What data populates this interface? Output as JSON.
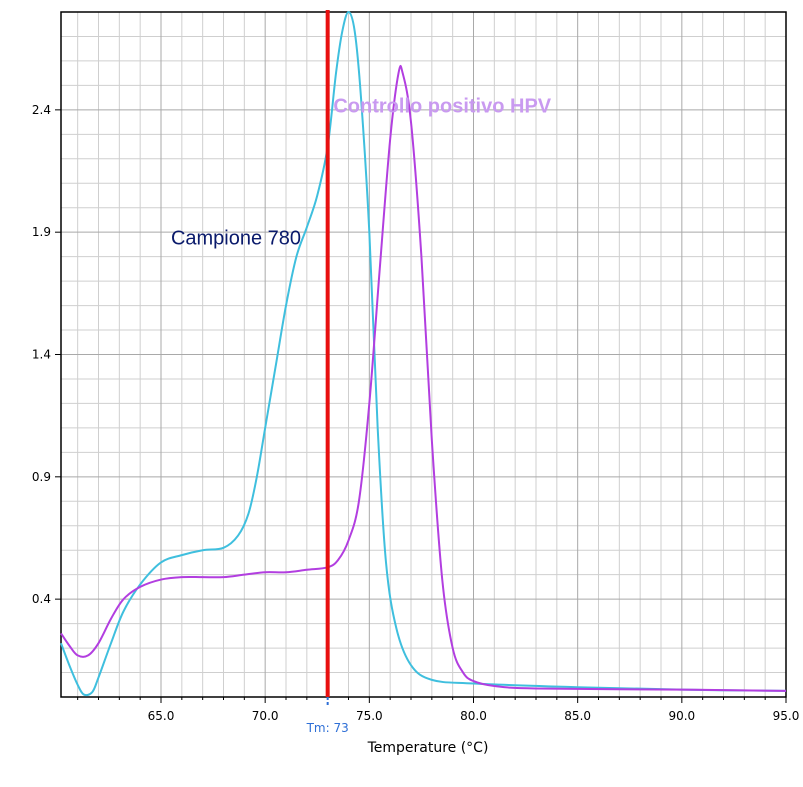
{
  "chart_data": {
    "type": "line",
    "xlabel": "Temperature (°C)",
    "ylabel": "",
    "xlim": [
      60.2,
      95.0
    ],
    "ylim": [
      0.0,
      2.8
    ],
    "x_ticks": [
      "65.0",
      "70.0",
      "75.0",
      "80.0",
      "85.0",
      "90.0",
      "95.0"
    ],
    "y_ticks": [
      "0.4",
      "0.9",
      "1.4",
      "1.9",
      "2.4"
    ],
    "x_tick_values": [
      65,
      70,
      75,
      80,
      85,
      90,
      95
    ],
    "y_tick_values": [
      0.4,
      0.9,
      1.4,
      1.9,
      2.4
    ],
    "grid": true,
    "colors": {
      "series1": "#3fbfde",
      "series2": "#b23ee0",
      "marker": "#e81010",
      "tm": "#2e6fd6"
    },
    "series": [
      {
        "name": "Campione 780",
        "points": [
          [
            60.2,
            0.22
          ],
          [
            60.6,
            0.13
          ],
          [
            61.0,
            0.05
          ],
          [
            61.3,
            0.01
          ],
          [
            61.7,
            0.02
          ],
          [
            62.0,
            0.08
          ],
          [
            62.6,
            0.22
          ],
          [
            63.2,
            0.35
          ],
          [
            64.0,
            0.46
          ],
          [
            65.0,
            0.55
          ],
          [
            66.0,
            0.58
          ],
          [
            67.0,
            0.6
          ],
          [
            68.0,
            0.61
          ],
          [
            68.7,
            0.66
          ],
          [
            69.2,
            0.75
          ],
          [
            69.6,
            0.9
          ],
          [
            70.0,
            1.1
          ],
          [
            70.5,
            1.35
          ],
          [
            71.0,
            1.6
          ],
          [
            71.5,
            1.8
          ],
          [
            72.0,
            1.92
          ],
          [
            72.5,
            2.05
          ],
          [
            73.0,
            2.25
          ],
          [
            73.4,
            2.55
          ],
          [
            73.7,
            2.72
          ],
          [
            74.0,
            2.8
          ],
          [
            74.3,
            2.72
          ],
          [
            74.6,
            2.45
          ],
          [
            75.0,
            1.9
          ],
          [
            75.4,
            1.1
          ],
          [
            75.8,
            0.55
          ],
          [
            76.3,
            0.28
          ],
          [
            77.0,
            0.13
          ],
          [
            78.0,
            0.07
          ],
          [
            80.0,
            0.055
          ],
          [
            85.0,
            0.04
          ],
          [
            90.0,
            0.03
          ],
          [
            95.0,
            0.025
          ]
        ]
      },
      {
        "name": "Controllo positivo HPV",
        "points": [
          [
            60.2,
            0.26
          ],
          [
            60.6,
            0.21
          ],
          [
            61.0,
            0.17
          ],
          [
            61.5,
            0.17
          ],
          [
            62.0,
            0.22
          ],
          [
            62.6,
            0.32
          ],
          [
            63.2,
            0.4
          ],
          [
            64.0,
            0.45
          ],
          [
            65.0,
            0.48
          ],
          [
            66.0,
            0.49
          ],
          [
            67.0,
            0.49
          ],
          [
            68.0,
            0.49
          ],
          [
            69.0,
            0.5
          ],
          [
            70.0,
            0.51
          ],
          [
            71.0,
            0.51
          ],
          [
            72.0,
            0.52
          ],
          [
            73.0,
            0.53
          ],
          [
            73.5,
            0.56
          ],
          [
            74.0,
            0.64
          ],
          [
            74.5,
            0.8
          ],
          [
            75.0,
            1.2
          ],
          [
            75.5,
            1.75
          ],
          [
            76.0,
            2.28
          ],
          [
            76.4,
            2.55
          ],
          [
            76.6,
            2.55
          ],
          [
            77.0,
            2.35
          ],
          [
            77.5,
            1.8
          ],
          [
            78.0,
            1.05
          ],
          [
            78.5,
            0.48
          ],
          [
            79.0,
            0.2
          ],
          [
            79.5,
            0.1
          ],
          [
            80.0,
            0.065
          ],
          [
            81.0,
            0.045
          ],
          [
            83.0,
            0.035
          ],
          [
            90.0,
            0.03
          ],
          [
            95.0,
            0.025
          ]
        ]
      }
    ],
    "annotations": [
      {
        "text": "Campione 780",
        "x": 68.6,
        "y": 1.85
      },
      {
        "text": "Controllo positivo HPV",
        "x": 78.5,
        "y": 2.39
      }
    ],
    "marker_line": {
      "x": 73.0,
      "label": "Tm: 73"
    }
  }
}
